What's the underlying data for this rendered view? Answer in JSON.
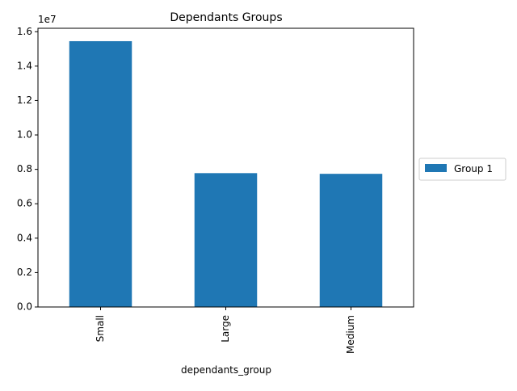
{
  "chart_data": {
    "type": "bar",
    "title": "Dependants Groups",
    "xlabel": "dependants_group",
    "ylabel": "",
    "categories": [
      "Small",
      "Large",
      "Medium"
    ],
    "series": [
      {
        "name": "Group 1",
        "values": [
          15450000,
          7780000,
          7740000
        ],
        "color": "#1f77b4"
      }
    ],
    "ylim": [
      0,
      16200000
    ],
    "yticks": [
      0,
      2000000,
      4000000,
      6000000,
      8000000,
      10000000,
      12000000,
      14000000,
      16000000
    ],
    "ytick_labels": [
      "0.0",
      "0.2",
      "0.4",
      "0.6",
      "0.8",
      "1.0",
      "1.2",
      "1.4",
      "1.6"
    ],
    "y_offset_label": "1e7",
    "grid": false,
    "legend_position": "center-right outside"
  }
}
